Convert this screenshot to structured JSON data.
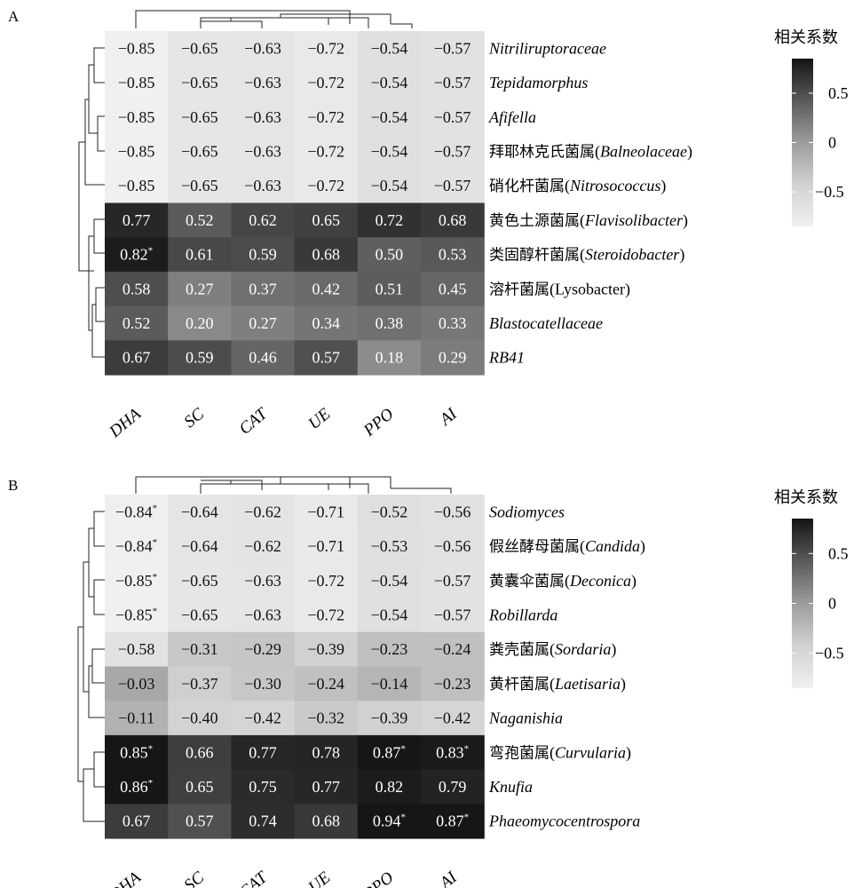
{
  "legend": {
    "title": "相关系数",
    "ticks": [
      "0.5",
      "0",
      "-0.5"
    ],
    "tick_values": [
      0.5,
      0,
      -0.5
    ],
    "range": [
      -0.85,
      0.85
    ]
  },
  "chart_data": [
    {
      "type": "heatmap",
      "panel_label": "A",
      "legend_title": "相关系数",
      "columns": [
        "DHA",
        "SC",
        "CAT",
        "UE",
        "PPO",
        "AI"
      ],
      "rows": [
        {
          "zh": "",
          "sci": "Nitriliruptoraceae"
        },
        {
          "zh": "",
          "sci": "Tepidamorphus"
        },
        {
          "zh": "",
          "sci": "Afifella"
        },
        {
          "zh": "拜耶林克氏菌属",
          "sci": "Balneolaceae"
        },
        {
          "zh": "硝化杆菌属",
          "sci": "Nitrosococcus"
        },
        {
          "zh": "黄色土源菌属",
          "sci": "Flavisolibacter"
        },
        {
          "zh": "类固醇杆菌属",
          "sci": "Steroidobacter"
        },
        {
          "zh": "溶杆菌属",
          "sci": "Lysobacter",
          "upright_sci": true
        },
        {
          "zh": "",
          "sci": "Blastocatellaceae"
        },
        {
          "zh": "",
          "sci": "RB41"
        }
      ],
      "values": [
        [
          -0.85,
          -0.65,
          -0.63,
          -0.72,
          -0.54,
          -0.57
        ],
        [
          -0.85,
          -0.65,
          -0.63,
          -0.72,
          -0.54,
          -0.57
        ],
        [
          -0.85,
          -0.65,
          -0.63,
          -0.72,
          -0.54,
          -0.57
        ],
        [
          -0.85,
          -0.65,
          -0.63,
          -0.72,
          -0.54,
          -0.57
        ],
        [
          -0.85,
          -0.65,
          -0.63,
          -0.72,
          -0.54,
          -0.57
        ],
        [
          0.77,
          0.52,
          0.62,
          0.65,
          0.72,
          0.68
        ],
        [
          0.82,
          0.61,
          0.59,
          0.68,
          0.5,
          0.53
        ],
        [
          0.58,
          0.27,
          0.37,
          0.42,
          0.51,
          0.45
        ],
        [
          0.52,
          0.2,
          0.27,
          0.34,
          0.38,
          0.33
        ],
        [
          0.67,
          0.59,
          0.46,
          0.57,
          0.18,
          0.29
        ]
      ],
      "significant": [
        [
          6,
          0
        ]
      ]
    },
    {
      "type": "heatmap",
      "panel_label": "B",
      "legend_title": "相关系数",
      "columns": [
        "DHA",
        "SC",
        "CAT",
        "UE",
        "PPO",
        "AI"
      ],
      "rows": [
        {
          "zh": "",
          "sci": "Sodiomyces"
        },
        {
          "zh": "假丝酵母菌属",
          "sci": "Candida"
        },
        {
          "zh": "黄囊伞菌属",
          "sci": "Deconica"
        },
        {
          "zh": "",
          "sci": "Robillarda"
        },
        {
          "zh": "粪壳菌属",
          "sci": "Sordaria"
        },
        {
          "zh": "黄杆菌属",
          "sci": "Laetisaria"
        },
        {
          "zh": "",
          "sci": "Naganishia"
        },
        {
          "zh": "弯孢菌属",
          "sci": "Curvularia"
        },
        {
          "zh": "",
          "sci": "Knufia"
        },
        {
          "zh": "",
          "sci": "Phaeomycocentrospora"
        }
      ],
      "values": [
        [
          -0.84,
          -0.64,
          -0.62,
          -0.71,
          -0.52,
          -0.56
        ],
        [
          -0.84,
          -0.64,
          -0.62,
          -0.71,
          -0.53,
          -0.56
        ],
        [
          -0.85,
          -0.65,
          -0.63,
          -0.72,
          -0.54,
          -0.57
        ],
        [
          -0.85,
          -0.65,
          -0.63,
          -0.72,
          -0.54,
          -0.57
        ],
        [
          -0.58,
          -0.31,
          -0.29,
          -0.39,
          -0.23,
          -0.24
        ],
        [
          -0.03,
          -0.37,
          -0.3,
          -0.24,
          -0.14,
          -0.23
        ],
        [
          -0.11,
          -0.4,
          -0.42,
          -0.32,
          -0.39,
          -0.42
        ],
        [
          0.85,
          0.66,
          0.77,
          0.78,
          0.87,
          0.83
        ],
        [
          0.86,
          0.65,
          0.75,
          0.77,
          0.82,
          0.79
        ],
        [
          0.67,
          0.57,
          0.74,
          0.68,
          0.94,
          0.87
        ]
      ],
      "significant": [
        [
          0,
          0
        ],
        [
          1,
          0
        ],
        [
          2,
          0
        ],
        [
          3,
          0
        ],
        [
          7,
          0
        ],
        [
          7,
          4
        ],
        [
          7,
          5
        ],
        [
          8,
          0
        ],
        [
          9,
          4
        ],
        [
          9,
          5
        ]
      ]
    }
  ]
}
